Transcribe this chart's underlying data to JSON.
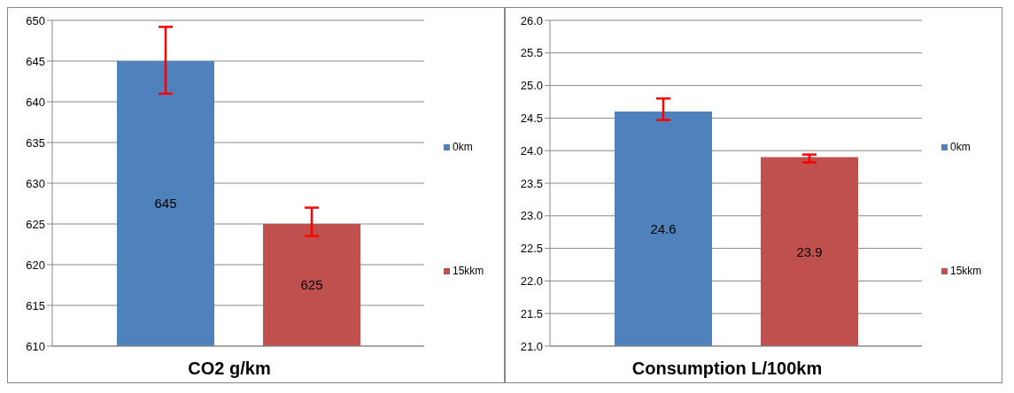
{
  "chart_data": [
    {
      "type": "bar",
      "title": "CO2 g/km",
      "categories": [
        null
      ],
      "series": [
        {
          "name": "0km",
          "color": "#4f81bd",
          "values": [
            645
          ],
          "errors": [
            [
              641,
              649.2
            ]
          ]
        },
        {
          "name": "15kkm",
          "color": "#c0504d",
          "values": [
            625
          ],
          "errors": [
            [
              623.5,
              627
            ]
          ]
        }
      ],
      "ylim": [
        610,
        650
      ],
      "yticks": [
        610,
        615,
        620,
        625,
        630,
        635,
        640,
        645,
        650
      ],
      "grid": "y",
      "legend": "right",
      "data_labels": true
    },
    {
      "type": "bar",
      "title": "Consumption L/100km",
      "categories": [
        null
      ],
      "series": [
        {
          "name": "0km",
          "color": "#4f81bd",
          "values": [
            24.6
          ],
          "errors": [
            [
              24.47,
              24.8
            ]
          ]
        },
        {
          "name": "15kkm",
          "color": "#c0504d",
          "values": [
            23.9
          ],
          "errors": [
            [
              23.82,
              23.94
            ]
          ]
        }
      ],
      "ylim": [
        21,
        26
      ],
      "yticks": [
        {
          "value": 21,
          "label": "21.0"
        },
        {
          "value": 21.5,
          "label": "21.5"
        },
        {
          "value": 22,
          "label": "22.0"
        },
        {
          "value": 22.5,
          "label": "22.5"
        },
        {
          "value": 23,
          "label": "23.0"
        },
        {
          "value": 23.5,
          "label": "23.5"
        },
        {
          "value": 24,
          "label": "24.0"
        },
        {
          "value": 24.5,
          "label": "24.5"
        },
        {
          "value": 25,
          "label": "25.0"
        },
        {
          "value": 25.5,
          "label": "25.5"
        },
        {
          "value": 26,
          "label": "26.0"
        }
      ],
      "grid": "y",
      "legend": "right",
      "data_labels": true
    }
  ]
}
